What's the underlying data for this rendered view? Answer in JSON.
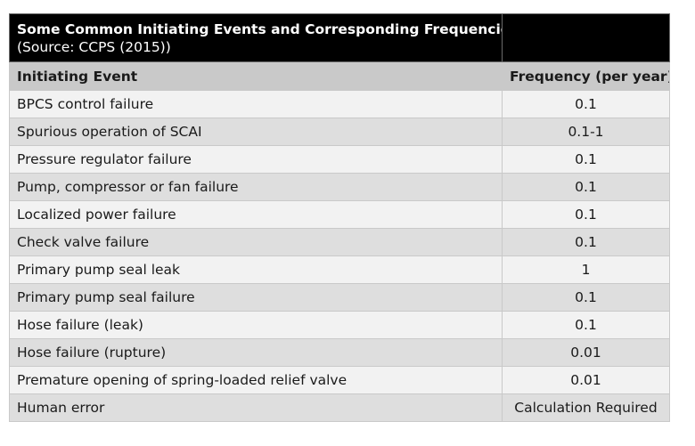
{
  "title": "Some Common Initiating Events and Corresponding Frequencies",
  "source": "(Source: CCPS (2015))",
  "headers": {
    "event": "Initiating Event",
    "frequency": "Frequency (per year)"
  },
  "rows": [
    {
      "event": "BPCS control failure",
      "frequency": "0.1"
    },
    {
      "event": "Spurious operation of SCAI",
      "frequency": "0.1-1"
    },
    {
      "event": "Pressure regulator failure",
      "frequency": "0.1"
    },
    {
      "event": "Pump, compressor or fan failure",
      "frequency": "0.1"
    },
    {
      "event": "Localized power failure",
      "frequency": "0.1"
    },
    {
      "event": "Check valve failure",
      "frequency": "0.1"
    },
    {
      "event": "Primary pump seal leak",
      "frequency": "1"
    },
    {
      "event": "Primary pump seal failure",
      "frequency": "0.1"
    },
    {
      "event": "Hose failure (leak)",
      "frequency": "0.1"
    },
    {
      "event": "Hose failure (rupture)",
      "frequency": "0.01"
    },
    {
      "event": "Premature opening of spring-loaded relief valve",
      "frequency": "0.01"
    },
    {
      "event": "Human error",
      "frequency": "Calculation Required"
    }
  ]
}
